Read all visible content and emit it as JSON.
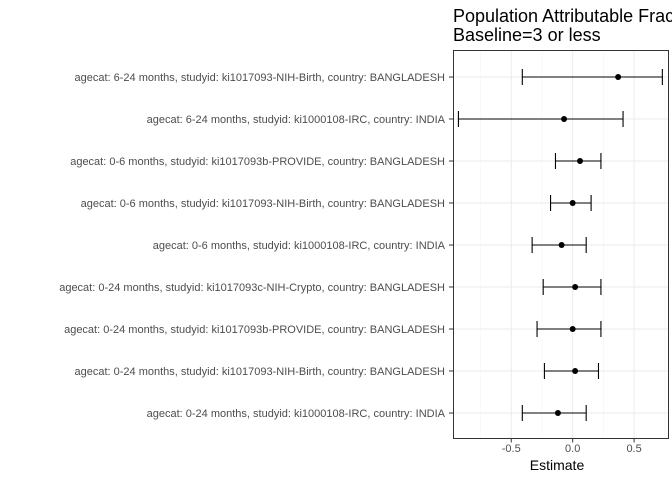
{
  "chart_data": {
    "type": "forest",
    "title_lines": [
      "Population Attributable Frac",
      "Baseline=3 or less"
    ],
    "xlabel": "Estimate",
    "ylabel": "",
    "xlim": [
      -0.97,
      0.78
    ],
    "xticks": [
      -0.5,
      0.0,
      0.5
    ],
    "xtick_labels": [
      "-0.5",
      "0.0",
      "0.5"
    ],
    "grid": true,
    "categories": [
      "agecat: 6-24 months, studyid: ki1017093-NIH-Birth, country: BANGLADESH",
      "agecat: 6-24 months, studyid: ki1000108-IRC, country: INDIA",
      "agecat: 0-6 months, studyid: ki1017093b-PROVIDE, country: BANGLADESH",
      "agecat: 0-6 months, studyid: ki1017093-NIH-Birth, country: BANGLADESH",
      "agecat: 0-6 months, studyid: ki1000108-IRC, country: INDIA",
      "agecat: 0-24 months, studyid: ki1017093c-NIH-Crypto, country: BANGLADESH",
      "agecat: 0-24 months, studyid: ki1017093b-PROVIDE, country: BANGLADESH",
      "agecat: 0-24 months, studyid: ki1017093-NIH-Birth, country: BANGLADESH",
      "agecat: 0-24 months, studyid: ki1000108-IRC, country: INDIA"
    ],
    "estimates": [
      0.37,
      -0.07,
      0.06,
      0.0,
      -0.09,
      0.02,
      0.0,
      0.02,
      -0.12
    ],
    "ci_lower": [
      -0.41,
      -0.93,
      -0.14,
      -0.18,
      -0.33,
      -0.24,
      -0.29,
      -0.23,
      -0.41
    ],
    "ci_upper": [
      0.73,
      0.41,
      0.23,
      0.15,
      0.11,
      0.23,
      0.23,
      0.21,
      0.11
    ]
  }
}
